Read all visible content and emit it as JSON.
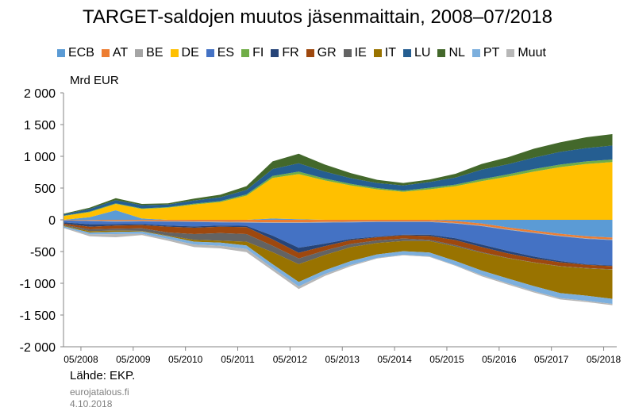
{
  "chart_data": {
    "type": "area",
    "title": "TARGET-saldojen muutos jäsenmaittain, 2008–07/2018",
    "ylabel": "Mrd EUR",
    "xlabel": "",
    "ylim": [
      -2000,
      2000
    ],
    "y_ticks": [
      "2 000",
      "1 500",
      "1 000",
      "500",
      "0",
      "-500",
      "-1 000",
      "-1 500",
      "-2 000"
    ],
    "x_ticks": [
      "05/2008",
      "05/2009",
      "05/2010",
      "05/2011",
      "05/2012",
      "05/2013",
      "05/2014",
      "05/2015",
      "05/2016",
      "05/2017",
      "05/2018"
    ],
    "x_dates": [
      "2008-01",
      "2008-07",
      "2009-01",
      "2009-07",
      "2010-01",
      "2010-07",
      "2011-01",
      "2011-07",
      "2012-01",
      "2012-07",
      "2013-01",
      "2013-07",
      "2014-01",
      "2014-07",
      "2015-01",
      "2015-07",
      "2016-01",
      "2016-07",
      "2017-01",
      "2017-07",
      "2018-01",
      "2018-07"
    ],
    "series": [
      {
        "name": "ECB",
        "color": "#5B9BD5",
        "values": [
          0,
          40,
          150,
          20,
          0,
          0,
          0,
          0,
          20,
          10,
          0,
          0,
          0,
          0,
          0,
          -20,
          -60,
          -120,
          -170,
          -220,
          -260,
          -280
        ]
      },
      {
        "name": "AT",
        "color": "#ED7D31",
        "values": [
          -5,
          -10,
          -15,
          -15,
          -20,
          -25,
          -30,
          -35,
          -40,
          -40,
          -35,
          -30,
          -25,
          -25,
          -25,
          -30,
          -30,
          -30,
          -30,
          -30,
          -30,
          -30
        ]
      },
      {
        "name": "BE",
        "color": "#A5A5A5",
        "values": [
          -5,
          -10,
          -15,
          -10,
          -10,
          -10,
          -10,
          -10,
          -10,
          -10,
          -10,
          -10,
          -10,
          -10,
          -10,
          -10,
          -10,
          -10,
          -10,
          -10,
          -10,
          -10
        ]
      },
      {
        "name": "DE",
        "color": "#FFC000",
        "values": [
          60,
          80,
          100,
          150,
          190,
          240,
          280,
          380,
          640,
          710,
          620,
          540,
          480,
          440,
          480,
          530,
          610,
          680,
          760,
          830,
          880,
          910
        ]
      },
      {
        "name": "ES",
        "color": "#4472C4",
        "values": [
          -30,
          -50,
          -40,
          -40,
          -60,
          -70,
          -50,
          -50,
          -200,
          -390,
          -330,
          -260,
          -230,
          -200,
          -200,
          -230,
          -290,
          -330,
          -370,
          -390,
          -400,
          -400
        ]
      },
      {
        "name": "FI",
        "color": "#70AD47",
        "values": [
          5,
          10,
          10,
          10,
          10,
          15,
          15,
          20,
          30,
          40,
          30,
          25,
          20,
          20,
          25,
          25,
          30,
          35,
          40,
          40,
          40,
          40
        ]
      },
      {
        "name": "FR",
        "color": "#264478",
        "values": [
          -20,
          -40,
          -20,
          -20,
          -20,
          -20,
          -20,
          -20,
          -60,
          -80,
          -40,
          -20,
          -10,
          -10,
          -20,
          -30,
          -40,
          -40,
          -30,
          -20,
          -10,
          -10
        ]
      },
      {
        "name": "GR",
        "color": "#9E480E",
        "values": [
          -20,
          -40,
          -50,
          -50,
          -90,
          -100,
          -100,
          -110,
          -100,
          -90,
          -70,
          -60,
          -50,
          -50,
          -60,
          -80,
          -80,
          -70,
          -60,
          -60,
          -50,
          -50
        ]
      },
      {
        "name": "IE",
        "color": "#636363",
        "values": [
          -10,
          -30,
          -30,
          -40,
          -50,
          -90,
          -120,
          -120,
          -100,
          -90,
          -70,
          -50,
          -40,
          -40,
          -20,
          -20,
          -10,
          -5,
          -5,
          -5,
          -5,
          -5
        ]
      },
      {
        "name": "IT",
        "color": "#997300",
        "values": [
          -10,
          -20,
          -20,
          -10,
          -10,
          -30,
          -30,
          -60,
          -190,
          -280,
          -240,
          -220,
          -180,
          -160,
          -180,
          -230,
          -280,
          -320,
          -370,
          -420,
          -430,
          -460
        ]
      },
      {
        "name": "LU",
        "color": "#255E91",
        "values": [
          20,
          40,
          50,
          50,
          40,
          50,
          60,
          70,
          110,
          130,
          110,
          90,
          80,
          80,
          90,
          110,
          150,
          160,
          180,
          200,
          210,
          220
        ]
      },
      {
        "name": "NL",
        "color": "#43682B",
        "values": [
          10,
          20,
          30,
          20,
          20,
          30,
          40,
          60,
          120,
          150,
          110,
          80,
          50,
          40,
          40,
          60,
          90,
          110,
          140,
          150,
          170,
          180
        ]
      },
      {
        "name": "PT",
        "color": "#7CAFDD",
        "values": [
          -20,
          -30,
          -35,
          -35,
          -40,
          -45,
          -50,
          -55,
          -60,
          -70,
          -60,
          -60,
          -55,
          -55,
          -60,
          -65,
          -70,
          -75,
          -80,
          -80,
          -80,
          -80
        ]
      },
      {
        "name": "Muut",
        "color": "#B7B7B7",
        "values": [
          -10,
          -30,
          -50,
          -20,
          -30,
          -40,
          -40,
          -50,
          -40,
          -40,
          -30,
          -20,
          -10,
          -10,
          -10,
          -10,
          -20,
          -20,
          -20,
          -20,
          -20,
          -20
        ]
      }
    ]
  },
  "footer": {
    "source": "Lähde: EKP.",
    "site": "eurojatalous.fi",
    "date": "4.10.2018"
  }
}
